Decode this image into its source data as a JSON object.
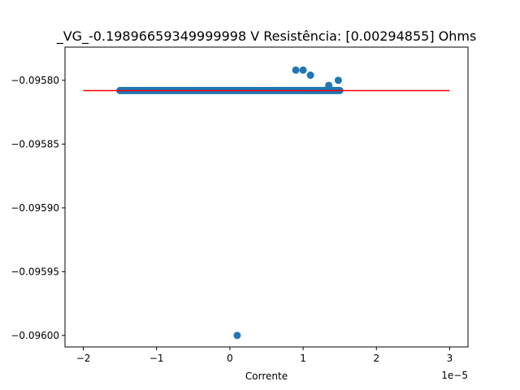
{
  "chart_data": {
    "type": "scatter",
    "title": "_VG_-0.19896659349999998 V  Resistência: [0.00294855] Ohms",
    "xlabel": "Corrente",
    "ylabel": "",
    "x_offset_text": "1e−5",
    "xlim": [
      -2.25e-05,
      3.25e-05
    ],
    "ylim": [
      -0.096009,
      -0.095774
    ],
    "x_ticks": [
      {
        "value": -2e-05,
        "label": "−2"
      },
      {
        "value": -1e-05,
        "label": "−1"
      },
      {
        "value": 0,
        "label": "0"
      },
      {
        "value": 1e-05,
        "label": "1"
      },
      {
        "value": 2e-05,
        "label": "2"
      },
      {
        "value": 3e-05,
        "label": "3"
      }
    ],
    "y_ticks": [
      {
        "value": -0.0958,
        "label": "−0.09580"
      },
      {
        "value": -0.09585,
        "label": "−0.09585"
      },
      {
        "value": -0.0959,
        "label": "−0.09590"
      },
      {
        "value": -0.09595,
        "label": "−0.09595"
      },
      {
        "value": -0.096,
        "label": "−0.09600"
      }
    ],
    "grid": false,
    "series": [
      {
        "kind": "scatter",
        "color": "#1f77b4",
        "x_range_dense": [
          -1.5e-05,
          1.5e-05
        ],
        "y_dense": -0.095808,
        "outliers": [
          {
            "x": 9e-06,
            "y": -0.095792
          },
          {
            "x": 1e-05,
            "y": -0.095792
          },
          {
            "x": 1.1e-05,
            "y": -0.095796
          },
          {
            "x": 1.35e-05,
            "y": -0.095804
          },
          {
            "x": 1.48e-05,
            "y": -0.0958
          },
          {
            "x": 1e-06,
            "y": -0.096
          }
        ]
      },
      {
        "kind": "line",
        "color": "#ff0000",
        "x": [
          -2e-05,
          3e-05
        ],
        "y": [
          -0.0958081,
          -0.0958081
        ]
      }
    ]
  }
}
